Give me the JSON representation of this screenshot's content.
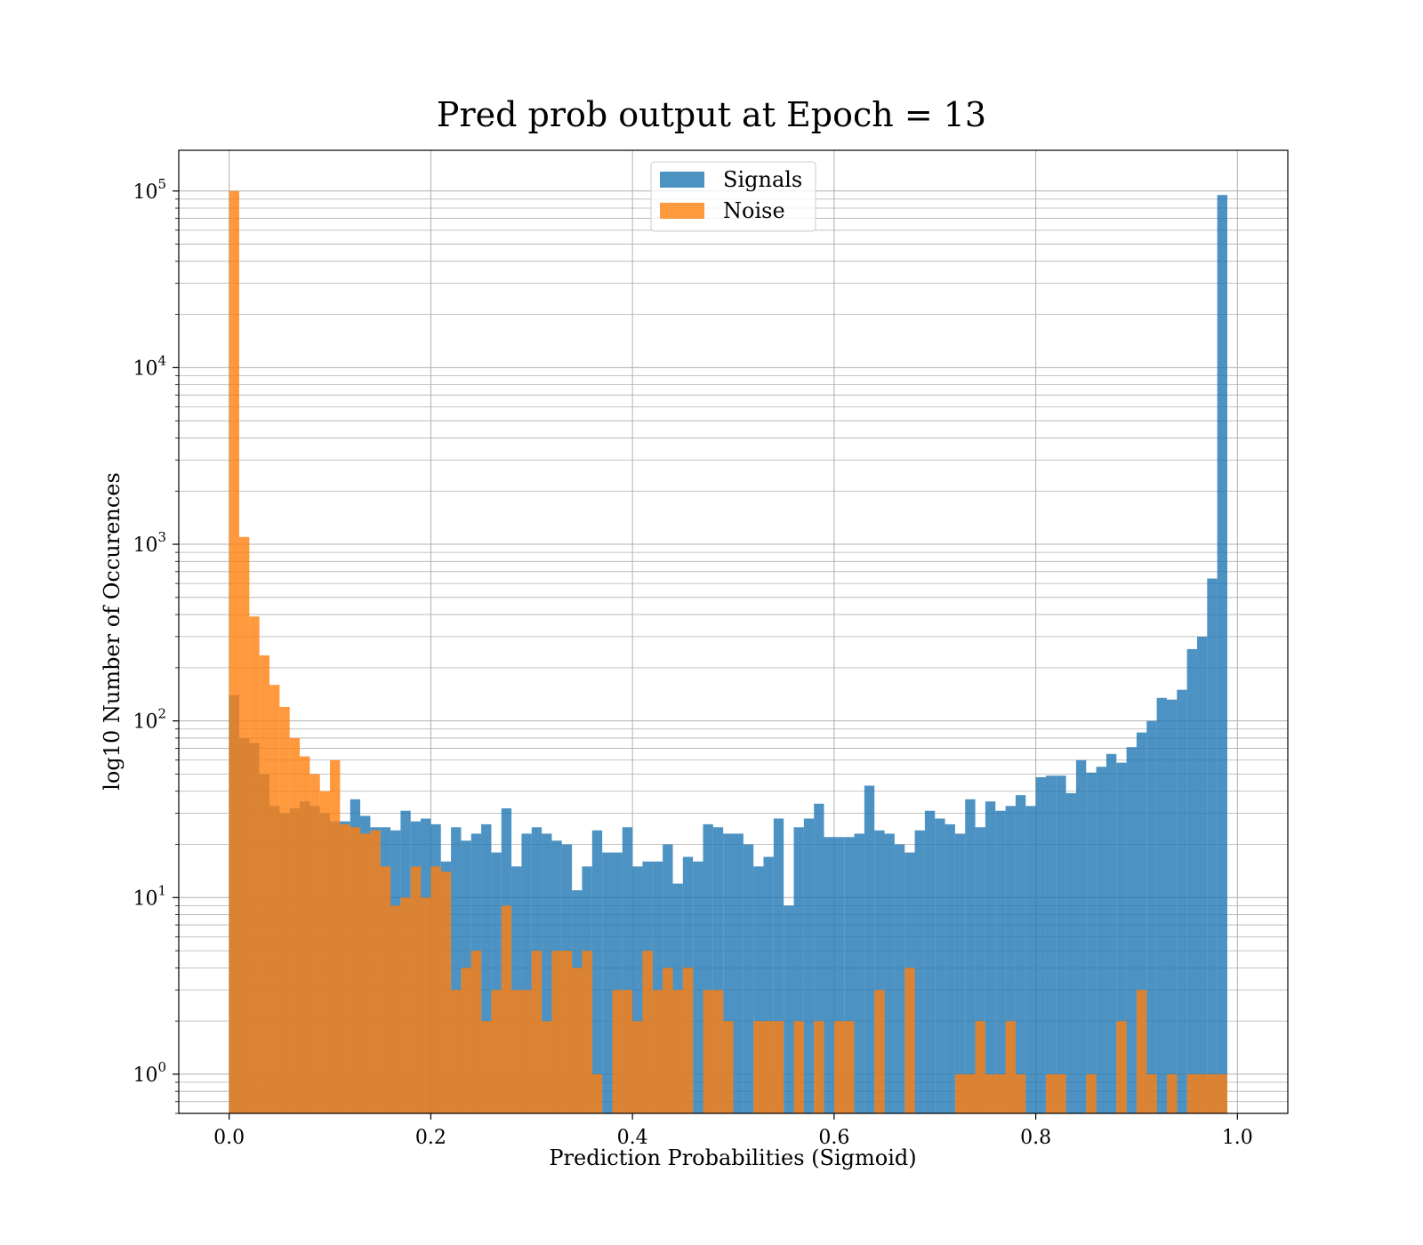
{
  "chart_data": {
    "type": "bar",
    "title": "Pred prob output at Epoch = 13",
    "xlabel": "Prediction Probabilities (Sigmoid)",
    "ylabel": "log10 Number of Occurences",
    "xlim": [
      -0.05,
      1.05
    ],
    "ylim": [
      0.6,
      170000
    ],
    "yscale": "log",
    "grid": true,
    "legend_position": "upper-center",
    "bin_width": 0.01,
    "bins_start": 0.0,
    "x_ticks": [
      {
        "value": 0.0,
        "label": "0.0"
      },
      {
        "value": 0.2,
        "label": "0.2"
      },
      {
        "value": 0.4,
        "label": "0.4"
      },
      {
        "value": 0.6,
        "label": "0.6"
      },
      {
        "value": 0.8,
        "label": "0.8"
      },
      {
        "value": 1.0,
        "label": "1.0"
      }
    ],
    "y_ticks": [
      {
        "value": 1,
        "base": "10",
        "exp": "0"
      },
      {
        "value": 10,
        "base": "10",
        "exp": "1"
      },
      {
        "value": 100,
        "base": "10",
        "exp": "2"
      },
      {
        "value": 1000,
        "base": "10",
        "exp": "3"
      },
      {
        "value": 10000,
        "base": "10",
        "exp": "4"
      },
      {
        "value": 100000,
        "base": "10",
        "exp": "5"
      }
    ],
    "series": [
      {
        "name": "Signals",
        "color": "#1f77b4",
        "opacity": 0.8,
        "values": [
          140,
          80,
          75,
          50,
          33,
          30,
          32,
          35,
          33,
          30,
          27,
          27,
          36,
          29,
          25,
          25,
          24,
          31,
          27,
          28,
          26,
          16,
          25,
          21,
          23,
          26,
          18,
          32,
          15,
          23,
          25,
          23,
          21,
          20,
          11,
          15,
          24,
          18,
          18,
          25,
          15,
          16,
          16,
          20,
          12,
          17,
          16,
          26,
          25,
          23,
          23,
          20,
          15,
          17,
          28,
          9,
          25,
          28,
          34,
          22,
          22,
          22,
          23,
          43,
          24,
          23,
          20,
          18,
          24,
          31,
          28,
          26,
          23,
          36,
          25,
          35,
          31,
          33,
          38,
          33,
          48,
          49,
          49,
          39,
          60,
          51,
          55,
          65,
          58,
          71,
          86,
          100,
          135,
          132,
          150,
          255,
          300,
          640,
          95000,
          0
        ]
      },
      {
        "name": "Noise",
        "color": "#ff7f0e",
        "opacity": 0.8,
        "values": [
          100000,
          1100,
          390,
          235,
          160,
          120,
          80,
          63,
          50,
          40,
          60,
          26,
          25,
          23,
          24,
          15,
          9,
          10,
          15,
          10,
          15,
          14,
          3,
          4,
          5,
          2,
          3,
          9,
          3,
          3,
          5,
          2,
          5,
          5,
          4,
          5,
          1,
          0,
          3,
          3,
          2,
          5,
          3,
          4,
          3,
          4,
          0,
          3,
          3,
          2,
          0,
          0,
          2,
          2,
          2,
          0,
          2,
          0,
          2,
          0,
          2,
          2,
          0,
          0,
          3,
          0,
          0,
          4,
          0,
          0,
          0,
          0,
          1,
          1,
          2,
          1,
          1,
          2,
          1,
          0,
          0,
          1,
          1,
          0,
          0,
          1,
          0,
          0,
          2,
          0,
          3,
          1,
          0,
          1,
          0,
          1,
          1,
          1,
          1,
          0
        ]
      }
    ]
  }
}
